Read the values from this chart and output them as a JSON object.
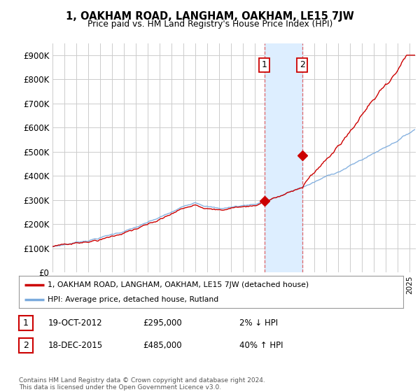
{
  "title": "1, OAKHAM ROAD, LANGHAM, OAKHAM, LE15 7JW",
  "subtitle": "Price paid vs. HM Land Registry's House Price Index (HPI)",
  "ylabel_values": [
    0,
    100000,
    200000,
    300000,
    400000,
    500000,
    600000,
    700000,
    800000,
    900000
  ],
  "ylim": [
    0,
    950000
  ],
  "xlim_start": 1995.0,
  "xlim_end": 2025.5,
  "sale1_x": 2012.8,
  "sale1_y": 295000,
  "sale1_label": "1",
  "sale2_x": 2015.96,
  "sale2_y": 485000,
  "sale2_label": "2",
  "red_line_color": "#cc0000",
  "blue_line_color": "#7aaadd",
  "highlight_color": "#ddeeff",
  "dashed_line_color": "#dd4444",
  "background_color": "#ffffff",
  "grid_color": "#cccccc",
  "legend_house_label": "1, OAKHAM ROAD, LANGHAM, OAKHAM, LE15 7JW (detached house)",
  "legend_hpi_label": "HPI: Average price, detached house, Rutland",
  "table_rows": [
    {
      "num": "1",
      "date": "19-OCT-2012",
      "price": "£295,000",
      "change": "2% ↓ HPI"
    },
    {
      "num": "2",
      "date": "18-DEC-2015",
      "price": "£485,000",
      "change": "40% ↑ HPI"
    }
  ],
  "footnote": "Contains HM Land Registry data © Crown copyright and database right 2024.\nThis data is licensed under the Open Government Licence v3.0."
}
